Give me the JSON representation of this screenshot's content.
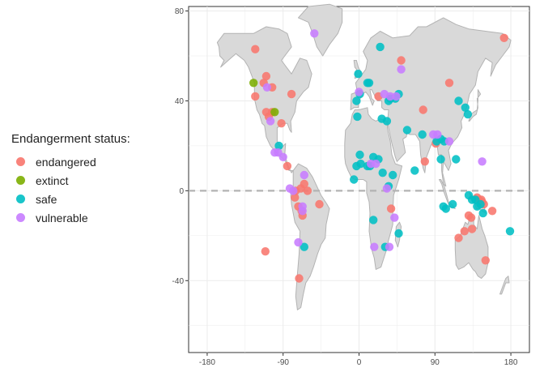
{
  "colors": {
    "endangered": "#F8766D",
    "extinct": "#7CAE00",
    "safe": "#00BFC4",
    "vulnerable": "#C77CFF",
    "land": "#d9d9d9",
    "coast": "#b3b3b3",
    "grid": "#ebebeb",
    "equator": "#b3b3b3"
  },
  "legend": {
    "title": "Endangerment status:",
    "items": [
      {
        "key": "endangered",
        "label": "endangered"
      },
      {
        "key": "extinct",
        "label": "extinct"
      },
      {
        "key": "safe",
        "label": "safe"
      },
      {
        "key": "vulnerable",
        "label": "vulnerable"
      }
    ]
  },
  "chart_data": {
    "type": "scatter",
    "title": "",
    "xlabel": "",
    "ylabel": "",
    "xlim": [
      -202,
      202
    ],
    "ylim": [
      -72,
      82
    ],
    "x_ticks": [
      -180,
      -90,
      0,
      90,
      180
    ],
    "x_tick_labels": [
      "-180",
      "-90",
      "0",
      "90",
      "180"
    ],
    "y_ticks": [
      -40,
      0,
      40,
      80
    ],
    "y_tick_labels": [
      "-40",
      "0",
      "40",
      "80"
    ],
    "grid": true,
    "legend_position": "left",
    "reference_line": {
      "y": 0,
      "style": "dashed"
    },
    "series": [
      {
        "name": "endangered",
        "points": [
          [
            -123,
            63
          ],
          [
            -110,
            51
          ],
          [
            -113,
            48
          ],
          [
            -103,
            46
          ],
          [
            -123,
            42
          ],
          [
            -110,
            35
          ],
          [
            -103,
            35
          ],
          [
            -107,
            33
          ],
          [
            -92,
            30
          ],
          [
            -85,
            11
          ],
          [
            -75,
            0
          ],
          [
            -76,
            -3
          ],
          [
            -72,
            -7
          ],
          [
            -68,
            -9
          ],
          [
            -67,
            -11
          ],
          [
            -47,
            -6
          ],
          [
            -80,
            43
          ],
          [
            -71,
            -39
          ],
          [
            -111,
            -27
          ],
          [
            -61,
            0
          ],
          [
            -69,
            1
          ],
          [
            -65,
            3
          ],
          [
            50,
            58
          ],
          [
            23,
            42
          ],
          [
            76,
            36
          ],
          [
            78,
            13
          ],
          [
            91,
            21
          ],
          [
            107,
            48
          ],
          [
            130,
            -11
          ],
          [
            133,
            -12
          ],
          [
            134,
            -17
          ],
          [
            125,
            -18
          ],
          [
            118,
            -21
          ],
          [
            140,
            -3
          ],
          [
            142,
            -4
          ],
          [
            145,
            -4
          ],
          [
            146,
            -5
          ],
          [
            148,
            -6
          ],
          [
            158,
            -9
          ],
          [
            150,
            -31
          ],
          [
            172,
            68
          ],
          [
            38,
            -8
          ]
        ]
      },
      {
        "name": "extinct",
        "points": [
          [
            -125,
            48
          ],
          [
            -100,
            35
          ]
        ]
      },
      {
        "name": "safe",
        "points": [
          [
            -1,
            52
          ],
          [
            -3,
            40
          ],
          [
            1,
            43
          ],
          [
            -2,
            33
          ],
          [
            12,
            48
          ],
          [
            -3,
            11
          ],
          [
            2,
            12
          ],
          [
            10,
            11
          ],
          [
            13,
            11
          ],
          [
            17,
            15
          ],
          [
            23,
            14
          ],
          [
            1,
            16
          ],
          [
            -6,
            5
          ],
          [
            28,
            8
          ],
          [
            27,
            32
          ],
          [
            35,
            40
          ],
          [
            33,
            31
          ],
          [
            40,
            7
          ],
          [
            35,
            2
          ],
          [
            43,
            41
          ],
          [
            47,
            43
          ],
          [
            57,
            27
          ],
          [
            66,
            9
          ],
          [
            75,
            25
          ],
          [
            25,
            64
          ],
          [
            10,
            48
          ],
          [
            17,
            -13
          ],
          [
            31,
            -25
          ],
          [
            47,
            -19
          ],
          [
            92,
            22
          ],
          [
            97,
            23
          ],
          [
            101,
            22
          ],
          [
            97,
            14
          ],
          [
            115,
            14
          ],
          [
            118,
            40
          ],
          [
            126,
            37
          ],
          [
            129,
            34
          ],
          [
            100,
            -7
          ],
          [
            103,
            -8
          ],
          [
            111,
            -6
          ],
          [
            130,
            -2
          ],
          [
            134,
            -4
          ],
          [
            138,
            -4
          ],
          [
            140,
            -7
          ],
          [
            144,
            -6
          ],
          [
            147,
            -10
          ],
          [
            -95,
            20
          ],
          [
            -65,
            -25
          ],
          [
            179,
            -18
          ],
          [
            37,
            41
          ]
        ]
      },
      {
        "name": "vulnerable",
        "points": [
          [
            -109,
            46
          ],
          [
            -96,
            17
          ],
          [
            -90,
            15
          ],
          [
            -100,
            17
          ],
          [
            -78,
            0
          ],
          [
            -82,
            1
          ],
          [
            -65,
            7
          ],
          [
            -67,
            -9
          ],
          [
            -72,
            -23
          ],
          [
            -67,
            -7
          ],
          [
            -105,
            31
          ],
          [
            -53,
            70
          ],
          [
            37,
            42
          ],
          [
            14,
            12
          ],
          [
            44,
            42
          ],
          [
            88,
            25
          ],
          [
            107,
            22
          ],
          [
            146,
            13
          ],
          [
            18,
            -25
          ],
          [
            36,
            -25
          ],
          [
            42,
            -12
          ],
          [
            20,
            12
          ],
          [
            33,
            1
          ],
          [
            50,
            54
          ],
          [
            0,
            44
          ],
          [
            93,
            25
          ],
          [
            30,
            43
          ]
        ]
      }
    ]
  }
}
